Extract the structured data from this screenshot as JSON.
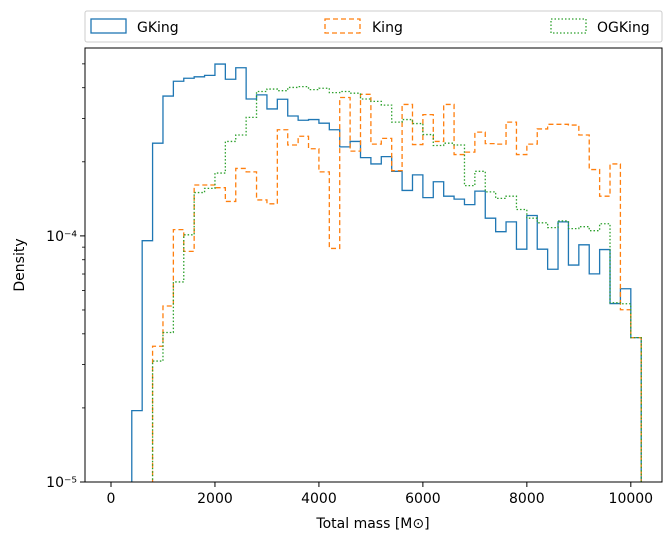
{
  "chart_data": {
    "type": "step-histogram",
    "xlabel": "Total mass [M⊙]",
    "ylabel": "Density",
    "xlim": [
      -500,
      10600
    ],
    "ylim": [
      1e-05,
      0.00058
    ],
    "yscale": "log",
    "xticks": [
      0,
      2000,
      4000,
      6000,
      8000,
      10000
    ],
    "xtick_labels": [
      "0",
      "2000",
      "4000",
      "6000",
      "8000",
      "10000"
    ],
    "yticks": [
      1e-05,
      0.0001
    ],
    "ytick_labels": [
      "10⁻⁵",
      "10⁻⁴"
    ],
    "legend_position": "top, outside plot",
    "bin_edges": [
      400,
      600,
      800,
      1000,
      1200,
      1400,
      1600,
      1800,
      2000,
      2200,
      2400,
      2600,
      2800,
      3000,
      3200,
      3400,
      3600,
      3800,
      4000,
      4200,
      4400,
      4600,
      4800,
      5000,
      5200,
      5400,
      5600,
      5800,
      6000,
      6200,
      6400,
      6600,
      6800,
      7000,
      7200,
      7400,
      7600,
      7800,
      8000,
      8200,
      8400,
      8600,
      8800,
      9000,
      9200,
      9400,
      9600,
      9800,
      10000
    ],
    "series": [
      {
        "name": "GKing",
        "color": "#1f77b4",
        "dash": "solid",
        "values": [
          1.95e-05,
          9.56e-05,
          0.000238,
          0.00037,
          0.000425,
          0.000437,
          0.000443,
          0.000449,
          0.000499,
          0.000433,
          0.000482,
          0.00036,
          0.000374,
          0.000328,
          0.000359,
          0.000307,
          0.000295,
          0.000297,
          0.000287,
          0.00027,
          0.00023,
          0.000242,
          0.000208,
          0.000196,
          0.00021,
          0.000183,
          0.000153,
          0.000177,
          0.000143,
          0.000166,
          0.000145,
          0.000141,
          0.000134,
          0.000152,
          0.000118,
          0.000104,
          0.000114,
          8.83e-05,
          0.000121,
          8.83e-05,
          7.32e-05,
          0.000114,
          7.61e-05,
          9.2e-05,
          7.01e-05,
          8.8e-05,
          5.31e-05,
          6.1e-05,
          3.86e-05
        ]
      },
      {
        "name": "King",
        "color": "#ff7f0e",
        "dash": "dashed",
        "values": [
          0,
          0,
          3.56e-05,
          5.19e-05,
          0.000106,
          8.65e-05,
          0.000161,
          0.000161,
          0.000157,
          0.000138,
          0.000188,
          0.000182,
          0.00014,
          0.000135,
          0.00027,
          0.000234,
          0.000254,
          0.000226,
          0.000182,
          8.89e-05,
          0.000365,
          0.000221,
          0.000376,
          0.000236,
          0.000249,
          0.000184,
          0.000342,
          0.000235,
          0.000311,
          0.000242,
          0.000342,
          0.000214,
          0.000219,
          0.000264,
          0.000237,
          0.000236,
          0.00029,
          0.000214,
          0.000236,
          0.000272,
          0.000284,
          0.000284,
          0.000282,
          0.000257,
          0.000186,
          0.000145,
          0.000196,
          5.01e-05,
          3.86e-05
        ]
      },
      {
        "name": "OGKing",
        "color": "#2ca02c",
        "dash": "dotted",
        "values": [
          0,
          0,
          3.1e-05,
          4.05e-05,
          6.5e-05,
          0.000101,
          0.00015,
          0.000156,
          0.00018,
          0.000242,
          0.000257,
          0.000303,
          0.000386,
          0.000395,
          0.000389,
          0.000401,
          0.000404,
          0.000393,
          0.000398,
          0.000382,
          0.000386,
          0.00038,
          0.00036,
          0.000352,
          0.00034,
          0.00029,
          0.000297,
          0.000286,
          0.000258,
          0.000233,
          0.000238,
          0.000234,
          0.00016,
          0.000183,
          0.000151,
          0.000142,
          0.000145,
          0.000128,
          0.000118,
          0.000113,
          0.000108,
          0.000115,
          0.000107,
          0.000109,
          0.000105,
          0.000112,
          5.35e-05,
          5.3e-05,
          3.86e-05
        ]
      }
    ]
  },
  "legend": {
    "entries": [
      "GKing",
      "King",
      "OGKing"
    ]
  }
}
